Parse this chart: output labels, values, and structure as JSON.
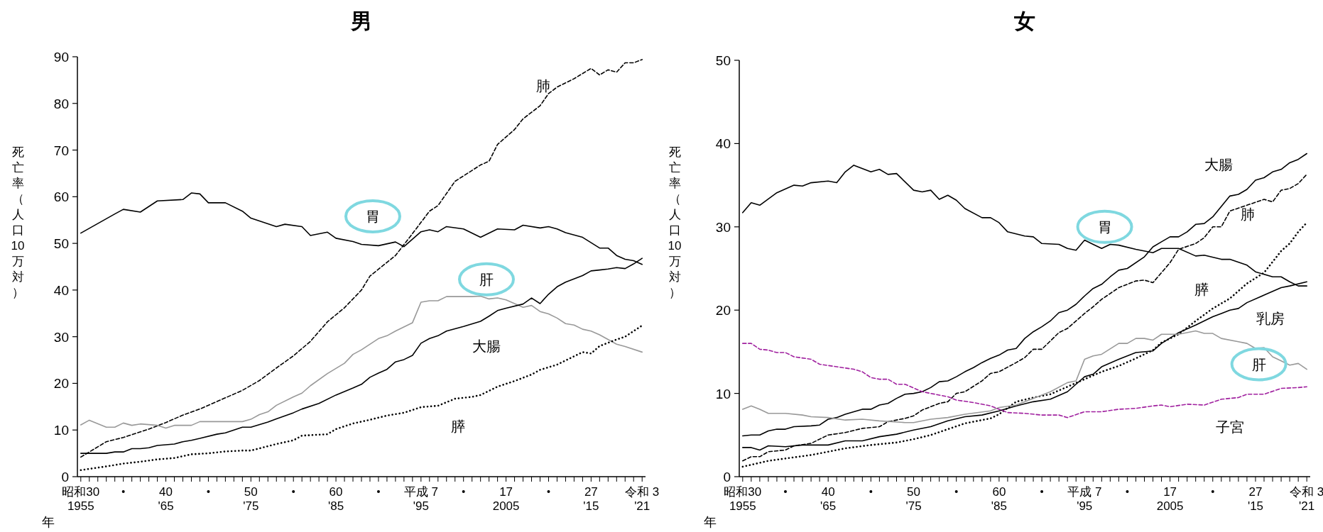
{
  "chart_data": [
    {
      "type": "line",
      "title": "男",
      "xlabel": "年",
      "ylabel": "死亡率（人口10万対）",
      "xlim": [
        1954.6,
        2021.4
      ],
      "ylim": [
        0,
        90
      ],
      "yticks": [
        0,
        10,
        20,
        30,
        40,
        50,
        60,
        70,
        80,
        90
      ],
      "xticks": [
        {
          "value": 1955,
          "label": "1955"
        },
        {
          "value": 1956,
          "label": null
        },
        {
          "value": 1957,
          "label": null
        },
        {
          "value": 1958,
          "label": null
        },
        {
          "value": 1959,
          "label": null
        },
        {
          "value": 1960,
          "label": null
        },
        {
          "value": 1961,
          "label": null
        },
        {
          "value": 1962,
          "label": null
        },
        {
          "value": 1963,
          "label": null
        },
        {
          "value": 1964,
          "label": null
        },
        {
          "value": 1965,
          "label": "'65"
        },
        {
          "value": 1966,
          "label": null
        },
        {
          "value": 1967,
          "label": null
        },
        {
          "value": 1968,
          "label": null
        },
        {
          "value": 1969,
          "label": null
        },
        {
          "value": 1970,
          "label": null
        },
        {
          "value": 1971,
          "label": null
        },
        {
          "value": 1972,
          "label": null
        },
        {
          "value": 1973,
          "label": null
        },
        {
          "value": 1974,
          "label": null
        },
        {
          "value": 1975,
          "label": "'75"
        },
        {
          "value": 1976,
          "label": null
        },
        {
          "value": 1977,
          "label": null
        },
        {
          "value": 1978,
          "label": null
        },
        {
          "value": 1979,
          "label": null
        },
        {
          "value": 1980,
          "label": null
        },
        {
          "value": 1981,
          "label": null
        },
        {
          "value": 1982,
          "label": null
        },
        {
          "value": 1983,
          "label": null
        },
        {
          "value": 1984,
          "label": null
        },
        {
          "value": 1985,
          "label": "'85"
        },
        {
          "value": 1986,
          "label": null
        },
        {
          "value": 1987,
          "label": null
        },
        {
          "value": 1988,
          "label": null
        },
        {
          "value": 1989,
          "label": null
        },
        {
          "value": 1990,
          "label": null
        },
        {
          "value": 1991,
          "label": null
        },
        {
          "value": 1992,
          "label": null
        },
        {
          "value": 1993,
          "label": null
        },
        {
          "value": 1994,
          "label": null
        },
        {
          "value": 1995,
          "label": "'95"
        },
        {
          "value": 1996,
          "label": null
        },
        {
          "value": 1997,
          "label": null
        },
        {
          "value": 1998,
          "label": null
        },
        {
          "value": 1999,
          "label": null
        },
        {
          "value": 2000,
          "label": null
        },
        {
          "value": 2001,
          "label": null
        },
        {
          "value": 2002,
          "label": null
        },
        {
          "value": 2003,
          "label": null
        },
        {
          "value": 2004,
          "label": null
        },
        {
          "value": 2005,
          "label": "2005"
        },
        {
          "value": 2006,
          "label": null
        },
        {
          "value": 2007,
          "label": null
        },
        {
          "value": 2008,
          "label": null
        },
        {
          "value": 2009,
          "label": null
        },
        {
          "value": 2010,
          "label": null
        },
        {
          "value": 2011,
          "label": null
        },
        {
          "value": 2012,
          "label": null
        },
        {
          "value": 2013,
          "label": null
        },
        {
          "value": 2014,
          "label": null
        },
        {
          "value": 2015,
          "label": "'15"
        },
        {
          "value": 2016,
          "label": null
        },
        {
          "value": 2017,
          "label": null
        },
        {
          "value": 2018,
          "label": null
        },
        {
          "value": 2019,
          "label": null
        },
        {
          "value": 2020,
          "label": null
        },
        {
          "value": 2021,
          "label": "'21"
        }
      ],
      "annotations": [
        "昭和30",
        "40",
        "50",
        "60",
        "平成 7",
        "17",
        "27",
        "令和 3"
      ],
      "series": [
        {
          "name": "胃",
          "color": "#000000",
          "line_style": "solid",
          "x": [
            1955,
            1959,
            1960,
            1962,
            1964,
            1967,
            1968,
            1969,
            1970,
            1972,
            1974,
            1975,
            1978,
            1979,
            1981,
            1982,
            1984,
            1985,
            1987,
            1988,
            1990,
            1992,
            1993,
            1995,
            1996,
            1997,
            1998,
            2000,
            2002,
            2004,
            2006,
            2007,
            2009,
            2010,
            2011,
            2012,
            2014,
            2016,
            2017,
            2018,
            2019,
            2020,
            2021
          ],
          "values": [
            52.2,
            56.3,
            57.3,
            56.7,
            59.1,
            59.4,
            60.8,
            60.6,
            58.7,
            58.7,
            56.9,
            55.4,
            53.6,
            54.1,
            53.6,
            51.7,
            52.4,
            51.1,
            50.4,
            49.8,
            49.5,
            50.3,
            49.3,
            52.5,
            52.9,
            52.5,
            53.6,
            53.1,
            51.3,
            53.1,
            52.9,
            53.9,
            53.3,
            53.6,
            53.1,
            52.3,
            51.3,
            49.0,
            49.0,
            47.4,
            46.6,
            46.3,
            45.5
          ]
        },
        {
          "name": "肺",
          "color": "#000000",
          "line_style": "dashed",
          "x": [
            1955,
            1958,
            1960,
            1963,
            1965,
            1967,
            1969,
            1972,
            1974,
            1976,
            1978,
            1980,
            1982,
            1984,
            1986,
            1988,
            1989,
            1992,
            1994,
            1996,
            1997,
            1999,
            2002,
            2003,
            2004,
            2006,
            2007,
            2009,
            2010,
            2011,
            2013,
            2015,
            2016,
            2017,
            2018,
            2019,
            2020,
            2021
          ],
          "values": [
            4.2,
            7.5,
            8.4,
            10.2,
            11.6,
            13.2,
            14.5,
            16.9,
            18.5,
            20.6,
            23.3,
            25.9,
            29.0,
            33.2,
            36.2,
            40.0,
            43.0,
            47.4,
            52.1,
            56.9,
            58.1,
            63.3,
            66.8,
            67.6,
            71.2,
            74.4,
            76.7,
            79.5,
            82.1,
            83.5,
            85.3,
            87.5,
            86.1,
            87.2,
            86.7,
            88.7,
            88.7,
            89.4
          ]
        },
        {
          "name": "肝",
          "color": "#999999",
          "line_style": "solid",
          "x": [
            1955,
            1956,
            1958,
            1959,
            1960,
            1961,
            1962,
            1964,
            1965,
            1966,
            1968,
            1969,
            1974,
            1975,
            1976,
            1977,
            1978,
            1980,
            1981,
            1982,
            1984,
            1986,
            1987,
            1988,
            1990,
            1991,
            1992,
            1994,
            1995,
            1996,
            1997,
            1998,
            2001,
            2002,
            2003,
            2004,
            2005,
            2007,
            2008,
            2009,
            2010,
            2011,
            2012,
            2013,
            2014,
            2015,
            2016,
            2018,
            2019,
            2021
          ],
          "values": [
            11.1,
            12.1,
            10.6,
            10.6,
            11.5,
            11.0,
            11.3,
            11.0,
            10.4,
            11.0,
            11.0,
            11.8,
            11.8,
            12.3,
            13.3,
            13.9,
            15.3,
            17.1,
            17.9,
            19.5,
            22.1,
            24.3,
            26.2,
            27.2,
            29.6,
            30.2,
            31.2,
            33.0,
            37.4,
            37.7,
            37.7,
            38.6,
            38.6,
            38.7,
            38.1,
            38.3,
            37.9,
            36.3,
            36.7,
            35.4,
            34.9,
            34.0,
            32.8,
            32.5,
            31.6,
            31.2,
            30.4,
            28.4,
            27.9,
            26.7
          ]
        },
        {
          "name": "大腸",
          "color": "#000000",
          "line_style": "solid",
          "x": [
            1955,
            1958,
            1959,
            1960,
            1961,
            1962,
            1963,
            1964,
            1966,
            1967,
            1968,
            1969,
            1971,
            1972,
            1974,
            1975,
            1977,
            1978,
            1980,
            1981,
            1983,
            1985,
            1987,
            1988,
            1989,
            1990,
            1991,
            1992,
            1993,
            1994,
            1995,
            1996,
            1997,
            1998,
            2000,
            2002,
            2003,
            2004,
            2005,
            2007,
            2008,
            2009,
            2010,
            2011,
            2012,
            2014,
            2015,
            2016,
            2017,
            2018,
            2019,
            2020,
            2021
          ],
          "values": [
            5.0,
            5.0,
            5.3,
            5.3,
            6.0,
            6.0,
            6.2,
            6.7,
            7.0,
            7.5,
            7.8,
            8.2,
            9.1,
            9.4,
            10.6,
            10.6,
            11.7,
            12.4,
            13.7,
            14.5,
            15.7,
            17.5,
            19.0,
            19.8,
            21.3,
            22.2,
            23.0,
            24.6,
            25.1,
            26.0,
            28.6,
            29.6,
            30.2,
            31.2,
            32.2,
            33.3,
            34.4,
            35.6,
            36.1,
            37.0,
            38.3,
            37.1,
            39.1,
            40.7,
            41.7,
            43.1,
            44.1,
            44.3,
            44.5,
            44.8,
            44.6,
            45.6,
            46.8
          ]
        },
        {
          "name": "膵",
          "color": "#000000",
          "line_style": "dotted",
          "x": [
            1955,
            1958,
            1960,
            1962,
            1964,
            1966,
            1968,
            1970,
            1972,
            1974,
            1975,
            1978,
            1980,
            1981,
            1984,
            1985,
            1987,
            1989,
            1991,
            1993,
            1995,
            1997,
            1999,
            2001,
            2002,
            2004,
            2006,
            2008,
            2009,
            2011,
            2013,
            2014,
            2015,
            2016,
            2018,
            2019,
            2020,
            2021
          ],
          "values": [
            1.4,
            2.2,
            2.8,
            3.2,
            3.7,
            4.0,
            4.8,
            5.0,
            5.4,
            5.6,
            5.6,
            7.0,
            7.8,
            8.8,
            9.1,
            10.2,
            11.4,
            12.2,
            13.1,
            13.7,
            14.9,
            15.2,
            16.7,
            17.1,
            17.5,
            19.3,
            20.5,
            21.9,
            22.9,
            24.0,
            25.8,
            26.7,
            26.4,
            28.0,
            29.4,
            30.0,
            31.2,
            32.4
          ]
        }
      ]
    },
    {
      "type": "line",
      "title": "女",
      "xlabel": "年",
      "ylabel": "死亡率（人口10万対）",
      "xlim": [
        1954.6,
        2021.4
      ],
      "ylim": [
        0,
        50
      ],
      "yticks": [
        0,
        10,
        20,
        30,
        40,
        50
      ],
      "xticks": [
        {
          "value": 1955,
          "label": "1955"
        },
        {
          "value": 1956,
          "label": null
        },
        {
          "value": 1957,
          "label": null
        },
        {
          "value": 1958,
          "label": null
        },
        {
          "value": 1959,
          "label": null
        },
        {
          "value": 1960,
          "label": null
        },
        {
          "value": 1961,
          "label": null
        },
        {
          "value": 1962,
          "label": null
        },
        {
          "value": 1963,
          "label": null
        },
        {
          "value": 1964,
          "label": null
        },
        {
          "value": 1965,
          "label": "'65"
        },
        {
          "value": 1966,
          "label": null
        },
        {
          "value": 1967,
          "label": null
        },
        {
          "value": 1968,
          "label": null
        },
        {
          "value": 1969,
          "label": null
        },
        {
          "value": 1970,
          "label": null
        },
        {
          "value": 1971,
          "label": null
        },
        {
          "value": 1972,
          "label": null
        },
        {
          "value": 1973,
          "label": null
        },
        {
          "value": 1974,
          "label": null
        },
        {
          "value": 1975,
          "label": "'75"
        },
        {
          "value": 1976,
          "label": null
        },
        {
          "value": 1977,
          "label": null
        },
        {
          "value": 1978,
          "label": null
        },
        {
          "value": 1979,
          "label": null
        },
        {
          "value": 1980,
          "label": null
        },
        {
          "value": 1981,
          "label": null
        },
        {
          "value": 1982,
          "label": null
        },
        {
          "value": 1983,
          "label": null
        },
        {
          "value": 1984,
          "label": null
        },
        {
          "value": 1985,
          "label": "'85"
        },
        {
          "value": 1986,
          "label": null
        },
        {
          "value": 1987,
          "label": null
        },
        {
          "value": 1988,
          "label": null
        },
        {
          "value": 1989,
          "label": null
        },
        {
          "value": 1990,
          "label": null
        },
        {
          "value": 1991,
          "label": null
        },
        {
          "value": 1992,
          "label": null
        },
        {
          "value": 1993,
          "label": null
        },
        {
          "value": 1994,
          "label": null
        },
        {
          "value": 1995,
          "label": "'95"
        },
        {
          "value": 1996,
          "label": null
        },
        {
          "value": 1997,
          "label": null
        },
        {
          "value": 1998,
          "label": null
        },
        {
          "value": 1999,
          "label": null
        },
        {
          "value": 2000,
          "label": null
        },
        {
          "value": 2001,
          "label": null
        },
        {
          "value": 2002,
          "label": null
        },
        {
          "value": 2003,
          "label": null
        },
        {
          "value": 2004,
          "label": null
        },
        {
          "value": 2005,
          "label": "2005"
        },
        {
          "value": 2006,
          "label": null
        },
        {
          "value": 2007,
          "label": null
        },
        {
          "value": 2008,
          "label": null
        },
        {
          "value": 2009,
          "label": null
        },
        {
          "value": 2010,
          "label": null
        },
        {
          "value": 2011,
          "label": null
        },
        {
          "value": 2012,
          "label": null
        },
        {
          "value": 2013,
          "label": null
        },
        {
          "value": 2014,
          "label": null
        },
        {
          "value": 2015,
          "label": "'15"
        },
        {
          "value": 2016,
          "label": null
        },
        {
          "value": 2017,
          "label": null
        },
        {
          "value": 2018,
          "label": null
        },
        {
          "value": 2019,
          "label": null
        },
        {
          "value": 2020,
          "label": null
        },
        {
          "value": 2021,
          "label": "'21"
        }
      ],
      "annotations": [
        "昭和30",
        "40",
        "50",
        "60",
        "平成 7",
        "17",
        "27",
        "令和 3"
      ],
      "series": [
        {
          "name": "胃",
          "color": "#000000",
          "line_style": "solid",
          "x": [
            1955,
            1956,
            1957,
            1959,
            1961,
            1962,
            1963,
            1965,
            1966,
            1967,
            1968,
            1970,
            1971,
            1972,
            1973,
            1975,
            1976,
            1977,
            1978,
            1979,
            1980,
            1981,
            1983,
            1984,
            1985,
            1986,
            1988,
            1989,
            1990,
            1992,
            1993,
            1994,
            1995,
            1996,
            1997,
            1998,
            1999,
            2001,
            2003,
            2004,
            2006,
            2008,
            2009,
            2011,
            2012,
            2014,
            2015,
            2017,
            2018,
            2019,
            2020,
            2021
          ],
          "values": [
            31.7,
            32.9,
            32.6,
            34.1,
            35.0,
            34.9,
            35.3,
            35.5,
            35.3,
            36.6,
            37.4,
            36.6,
            36.9,
            36.3,
            36.4,
            34.4,
            34.2,
            34.4,
            33.3,
            33.8,
            33.2,
            32.2,
            31.1,
            31.1,
            30.5,
            29.4,
            28.9,
            28.8,
            28.0,
            27.9,
            27.4,
            27.2,
            28.4,
            27.9,
            27.4,
            27.9,
            27.8,
            27.3,
            26.9,
            27.4,
            27.4,
            26.5,
            26.6,
            26.1,
            26.1,
            25.4,
            24.6,
            24.0,
            24.0,
            23.4,
            22.9,
            22.9
          ]
        },
        {
          "name": "大腸",
          "color": "#000000",
          "line_style": "solid",
          "x": [
            1955,
            1956,
            1957,
            1958,
            1959,
            1960,
            1961,
            1963,
            1964,
            1965,
            1966,
            1967,
            1968,
            1969,
            1970,
            1971,
            1972,
            1973,
            1974,
            1975,
            1976,
            1977,
            1978,
            1979,
            1980,
            1981,
            1982,
            1983,
            1984,
            1985,
            1986,
            1987,
            1988,
            1989,
            1990,
            1991,
            1992,
            1993,
            1994,
            1995,
            1996,
            1997,
            1998,
            1999,
            2000,
            2002,
            2003,
            2004,
            2005,
            2006,
            2007,
            2008,
            2009,
            2010,
            2012,
            2013,
            2014,
            2015,
            2016,
            2017,
            2018,
            2019,
            2020,
            2021
          ],
          "values": [
            4.9,
            5.0,
            5.0,
            5.5,
            5.7,
            5.7,
            6.0,
            6.1,
            6.2,
            6.9,
            7.1,
            7.5,
            7.8,
            8.1,
            8.1,
            8.6,
            8.8,
            9.4,
            9.9,
            10.0,
            10.2,
            10.7,
            11.4,
            11.5,
            12.0,
            12.6,
            13.1,
            13.7,
            14.2,
            14.6,
            15.2,
            15.4,
            16.6,
            17.4,
            18.0,
            18.7,
            19.7,
            20.0,
            20.7,
            21.7,
            22.6,
            23.1,
            24.0,
            24.8,
            25.0,
            26.4,
            27.6,
            28.2,
            28.8,
            28.8,
            29.4,
            30.3,
            30.4,
            31.2,
            33.7,
            33.9,
            34.5,
            35.6,
            35.9,
            36.6,
            36.9,
            37.7,
            38.1,
            38.8
          ]
        },
        {
          "name": "肺",
          "color": "#000000",
          "line_style": "dashed",
          "x": [
            1955,
            1956,
            1957,
            1958,
            1960,
            1961,
            1963,
            1965,
            1967,
            1969,
            1971,
            1972,
            1974,
            1975,
            1976,
            1978,
            1979,
            1980,
            1981,
            1983,
            1984,
            1985,
            1987,
            1988,
            1989,
            1990,
            1992,
            1993,
            1995,
            1996,
            1997,
            1999,
            2001,
            2002,
            2003,
            2004,
            2005,
            2006,
            2008,
            2009,
            2010,
            2011,
            2012,
            2014,
            2016,
            2017,
            2018,
            2019,
            2020,
            2021
          ],
          "values": [
            1.9,
            2.4,
            2.4,
            3.0,
            3.2,
            3.7,
            4.0,
            5.0,
            5.3,
            5.8,
            6.0,
            6.6,
            7.0,
            7.3,
            8.0,
            8.8,
            9.0,
            10.0,
            10.2,
            11.5,
            12.4,
            12.6,
            13.7,
            14.3,
            15.3,
            15.3,
            17.3,
            17.8,
            19.6,
            20.4,
            21.3,
            22.7,
            23.5,
            23.6,
            23.3,
            24.5,
            25.7,
            27.3,
            28.0,
            28.7,
            30.0,
            30.0,
            31.9,
            32.6,
            33.3,
            33.0,
            34.4,
            34.6,
            35.2,
            36.3
          ]
        },
        {
          "name": "膵",
          "color": "#000000",
          "line_style": "dotted",
          "x": [
            1955,
            1958,
            1963,
            1967,
            1970,
            1973,
            1975,
            1977,
            1979,
            1981,
            1984,
            1985,
            1987,
            1989,
            1991,
            1993,
            1995,
            1997,
            1999,
            2001,
            2003,
            2004,
            2006,
            2008,
            2010,
            2012,
            2014,
            2016,
            2018,
            2019,
            2020,
            2021
          ],
          "values": [
            1.2,
            1.9,
            2.6,
            3.4,
            3.8,
            4.1,
            4.5,
            5.0,
            5.7,
            6.4,
            7.0,
            7.5,
            9.0,
            9.5,
            9.9,
            10.8,
            11.7,
            12.6,
            13.3,
            14.2,
            15.2,
            16.1,
            17.1,
            18.7,
            20.2,
            21.4,
            23.2,
            24.5,
            27.1,
            28.0,
            29.4,
            30.5
          ]
        },
        {
          "name": "乳房",
          "color": "#000000",
          "line_style": "solid",
          "x": [
            1955,
            1956,
            1957,
            1958,
            1960,
            1962,
            1965,
            1967,
            1969,
            1971,
            1973,
            1975,
            1977,
            1979,
            1981,
            1983,
            1985,
            1987,
            1989,
            1991,
            1993,
            1995,
            1996,
            1997,
            1999,
            2001,
            2003,
            2004,
            2006,
            2008,
            2010,
            2011,
            2012,
            2013,
            2014,
            2016,
            2018,
            2019,
            2021
          ],
          "values": [
            3.5,
            3.5,
            3.2,
            3.7,
            3.6,
            3.8,
            3.8,
            4.3,
            4.3,
            4.8,
            5.1,
            5.6,
            6.0,
            6.7,
            7.2,
            7.4,
            7.9,
            8.5,
            9.0,
            9.3,
            10.2,
            12.0,
            12.3,
            13.2,
            14.1,
            14.9,
            15.1,
            16.0,
            17.3,
            18.2,
            19.2,
            19.6,
            20.0,
            20.2,
            20.9,
            21.8,
            22.7,
            22.9,
            23.4
          ]
        },
        {
          "name": "肝",
          "color": "#999999",
          "line_style": "solid",
          "x": [
            1955,
            1956,
            1957,
            1958,
            1960,
            1962,
            1963,
            1965,
            1967,
            1969,
            1971,
            1974,
            1975,
            1977,
            1979,
            1981,
            1984,
            1985,
            1987,
            1989,
            1991,
            1993,
            1994,
            1995,
            1996,
            1997,
            1999,
            2000,
            2001,
            2002,
            2003,
            2004,
            2006,
            2008,
            2009,
            2010,
            2011,
            2013,
            2014,
            2015,
            2016,
            2017,
            2018,
            2019,
            2020,
            2021
          ],
          "values": [
            8.1,
            8.5,
            8.1,
            7.6,
            7.6,
            7.4,
            7.2,
            7.1,
            6.8,
            6.9,
            6.7,
            6.5,
            6.5,
            6.9,
            7.1,
            7.5,
            7.9,
            8.3,
            8.6,
            9.4,
            10.2,
            11.3,
            11.5,
            14.1,
            14.5,
            14.7,
            16.0,
            16.0,
            16.6,
            16.6,
            16.4,
            17.1,
            17.1,
            17.5,
            17.2,
            17.2,
            16.6,
            16.2,
            16.0,
            15.4,
            15.5,
            14.4,
            13.9,
            13.4,
            13.6,
            12.9
          ]
        },
        {
          "name": "子宮",
          "color": "#a0209f",
          "line_style": "dashed",
          "x": [
            1955,
            1956,
            1957,
            1958,
            1959,
            1960,
            1961,
            1963,
            1964,
            1966,
            1968,
            1969,
            1970,
            1971,
            1972,
            1973,
            1974,
            1976,
            1978,
            1979,
            1980,
            1982,
            1984,
            1985,
            1986,
            1988,
            1990,
            1992,
            1993,
            1995,
            1997,
            1999,
            2001,
            2003,
            2004,
            2005,
            2007,
            2009,
            2011,
            2013,
            2014,
            2016,
            2018,
            2020,
            2021
          ],
          "values": [
            16.0,
            16.0,
            15.3,
            15.2,
            14.9,
            14.9,
            14.4,
            14.1,
            13.5,
            13.2,
            12.9,
            12.6,
            11.9,
            11.7,
            11.7,
            11.1,
            11.1,
            10.2,
            9.8,
            9.6,
            9.2,
            8.9,
            8.5,
            8.1,
            7.7,
            7.6,
            7.4,
            7.4,
            7.1,
            7.8,
            7.8,
            8.1,
            8.2,
            8.5,
            8.6,
            8.4,
            8.7,
            8.6,
            9.3,
            9.5,
            9.9,
            9.9,
            10.6,
            10.7,
            10.8
          ]
        }
      ]
    }
  ]
}
